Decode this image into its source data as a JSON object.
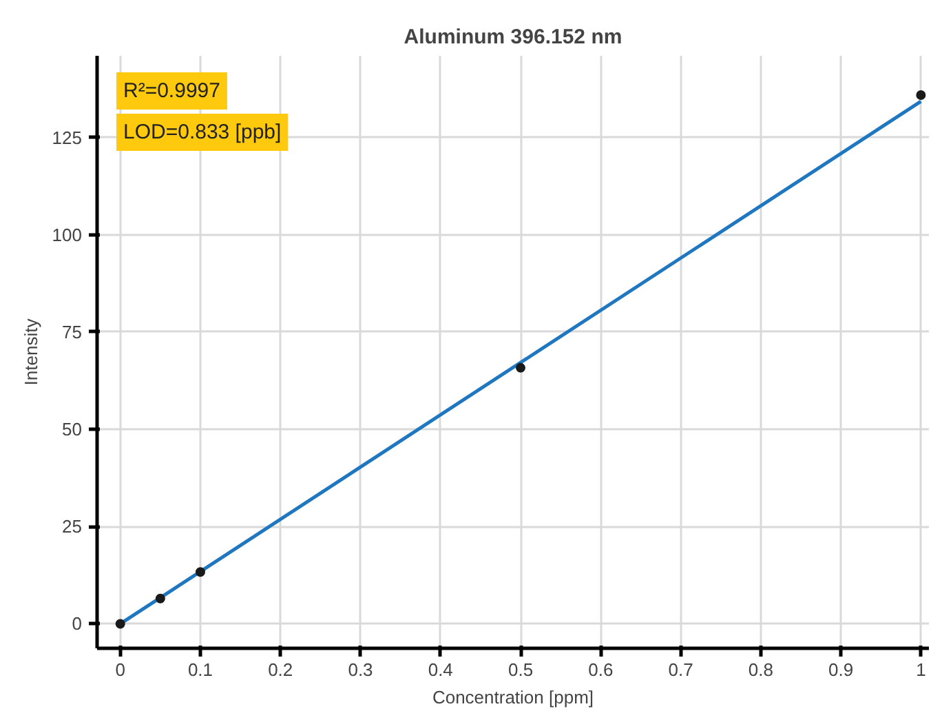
{
  "chart_data": {
    "type": "scatter",
    "title": "Aluminum 396.152 nm",
    "xlabel": "Concentration [ppm]",
    "ylabel": "Intensity",
    "annotations": [
      "R²=0.9997",
      "LOD=0.833 [ppb]"
    ],
    "xlim": [
      -0.029,
      1.01
    ],
    "ylim": [
      -6.3,
      146
    ],
    "xticks": [
      0,
      0.1,
      0.2,
      0.3,
      0.4,
      0.5,
      0.6,
      0.7,
      0.8,
      0.9,
      1
    ],
    "yticks": [
      0,
      25,
      50,
      75,
      100,
      125
    ],
    "grid": true,
    "series": [
      {
        "color": "#1a1a1a",
        "marker": "circle",
        "x": [
          0,
          0.05,
          0.1,
          0.5,
          1
        ],
        "values": [
          0,
          6.5,
          13.3,
          65.8,
          135.9
        ]
      },
      {
        "type": "line",
        "color": "#1f77c0",
        "x": [
          0,
          1
        ],
        "values": [
          0,
          134.3
        ]
      }
    ]
  }
}
